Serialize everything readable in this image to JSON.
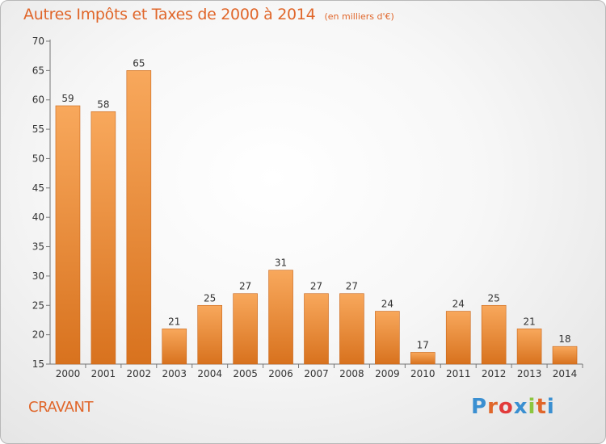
{
  "header": {
    "title": "Autres Impôts et Taxes de 2000 à 2014",
    "subtitle": "(en milliers d'€)"
  },
  "footer": {
    "commune": "CRAVANT",
    "logo_letters": [
      "P",
      "r",
      "o",
      "x",
      "i",
      "t",
      "i"
    ]
  },
  "colors": {
    "title": "#e0662a",
    "bar_top": "#f8a85c",
    "bar_bottom": "#d8721e",
    "bar_edge": "#c9661a",
    "logo": [
      "#3a8fd1",
      "#e0662a",
      "#e23b3b",
      "#3a8fd1",
      "#8cc63f",
      "#e0662a",
      "#3a8fd1"
    ]
  },
  "chart_data": {
    "type": "bar",
    "title": "Autres Impôts et Taxes de 2000 à 2014",
    "subtitle": "(en milliers d'€)",
    "categories": [
      "2000",
      "2001",
      "2002",
      "2003",
      "2004",
      "2005",
      "2006",
      "2007",
      "2008",
      "2009",
      "2010",
      "2011",
      "2012",
      "2013",
      "2014"
    ],
    "values": [
      59,
      58,
      65,
      21,
      25,
      27,
      31,
      27,
      27,
      24,
      17,
      24,
      25,
      21,
      18
    ],
    "ylim": [
      15,
      70
    ],
    "yticks": [
      15,
      20,
      25,
      30,
      35,
      40,
      45,
      50,
      55,
      60,
      65,
      70
    ],
    "grid": false,
    "data_labels": true
  }
}
